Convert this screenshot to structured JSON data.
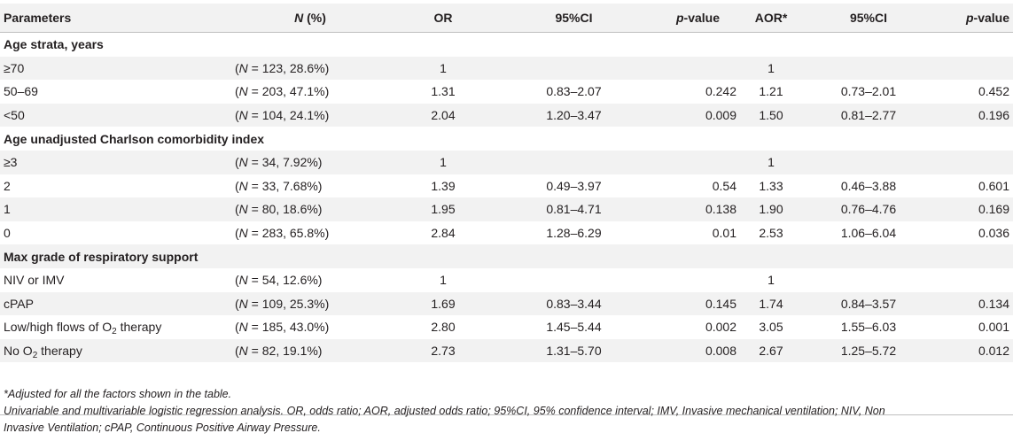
{
  "headers": {
    "parameters": "Parameters",
    "n_letter": "N",
    "n_suffix": " (%)",
    "or": "OR",
    "ci1": "95%CI",
    "p1_italic": "p",
    "p1_suffix": "-value",
    "aor": "AOR*",
    "ci2": "95%CI",
    "p2_italic": "p",
    "p2_suffix": "-value"
  },
  "sections": [
    {
      "title": "Age strata, years",
      "rows": [
        {
          "param": "≥70",
          "n": "N = 123, 28.6%)",
          "or": "1",
          "ci": "",
          "p": "",
          "aor": "1",
          "ci2": "",
          "p2": ""
        },
        {
          "param": "50–69",
          "n": "N = 203, 47.1%)",
          "or": "1.31",
          "ci": "0.83–2.07",
          "p": "0.242",
          "aor": "1.21",
          "ci2": "0.73–2.01",
          "p2": "0.452"
        },
        {
          "param": "<50",
          "n": "N = 104, 24.1%)",
          "or": "2.04",
          "ci": "1.20–3.47",
          "p": "0.009",
          "aor": "1.50",
          "ci2": "0.81–2.77",
          "p2": "0.196"
        }
      ]
    },
    {
      "title": "Age unadjusted Charlson comorbidity index",
      "rows": [
        {
          "param": "≥3",
          "n": "N = 34, 7.92%)",
          "or": "1",
          "ci": "",
          "p": "",
          "aor": "1",
          "ci2": "",
          "p2": ""
        },
        {
          "param": "2",
          "n": "N = 33, 7.68%)",
          "or": "1.39",
          "ci": "0.49–3.97",
          "p": "0.54",
          "aor": "1.33",
          "ci2": "0.46–3.88",
          "p2": "0.601"
        },
        {
          "param": "1",
          "n": "N = 80, 18.6%)",
          "or": "1.95",
          "ci": "0.81–4.71",
          "p": "0.138",
          "aor": "1.90",
          "ci2": "0.76–4.76",
          "p2": "0.169"
        },
        {
          "param": "0",
          "n": "N = 283, 65.8%)",
          "or": "2.84",
          "ci": "1.28–6.29",
          "p": "0.01",
          "aor": "2.53",
          "ci2": "1.06–6.04",
          "p2": "0.036"
        }
      ]
    },
    {
      "title": "Max grade of respiratory support",
      "rows": [
        {
          "param": "NIV or IMV",
          "n": "N = 54, 12.6%)",
          "or": "1",
          "ci": "",
          "p": "",
          "aor": "1",
          "ci2": "",
          "p2": ""
        },
        {
          "param": "cPAP",
          "n": "N = 109, 25.3%)",
          "or": "1.69",
          "ci": "0.83–3.44",
          "p": "0.145",
          "aor": "1.74",
          "ci2": "0.84–3.57",
          "p2": "0.134"
        },
        {
          "param_prefix": "Low/high flows of O",
          "param_sub": "2",
          "param_suffix": " therapy",
          "n": "N = 185, 43.0%)",
          "or": "2.80",
          "ci": "1.45–5.44",
          "p": "0.002",
          "aor": "3.05",
          "ci2": "1.55–6.03",
          "p2": "0.001"
        },
        {
          "param_prefix": "No O",
          "param_sub": "2",
          "param_suffix": " therapy",
          "n": "N = 82, 19.1%)",
          "or": "2.73",
          "ci": "1.31–5.70",
          "p": "0.008",
          "aor": "2.67",
          "ci2": "1.25–5.72",
          "p2": "0.012"
        }
      ]
    }
  ],
  "n_open_paren": "(",
  "footnotes": {
    "adjusted": "*Adjusted for all the factors shown in the table.",
    "legend_line1": "Univariable and multivariable logistic regression analysis. OR, odds ratio; AOR, adjusted odds ratio; 95%CI, 95% confidence interval; IMV, Invasive mechanical ventilation; NIV, Non",
    "legend_line2": "Invasive Ventilation; cPAP, Continuous Positive Airway Pressure."
  }
}
